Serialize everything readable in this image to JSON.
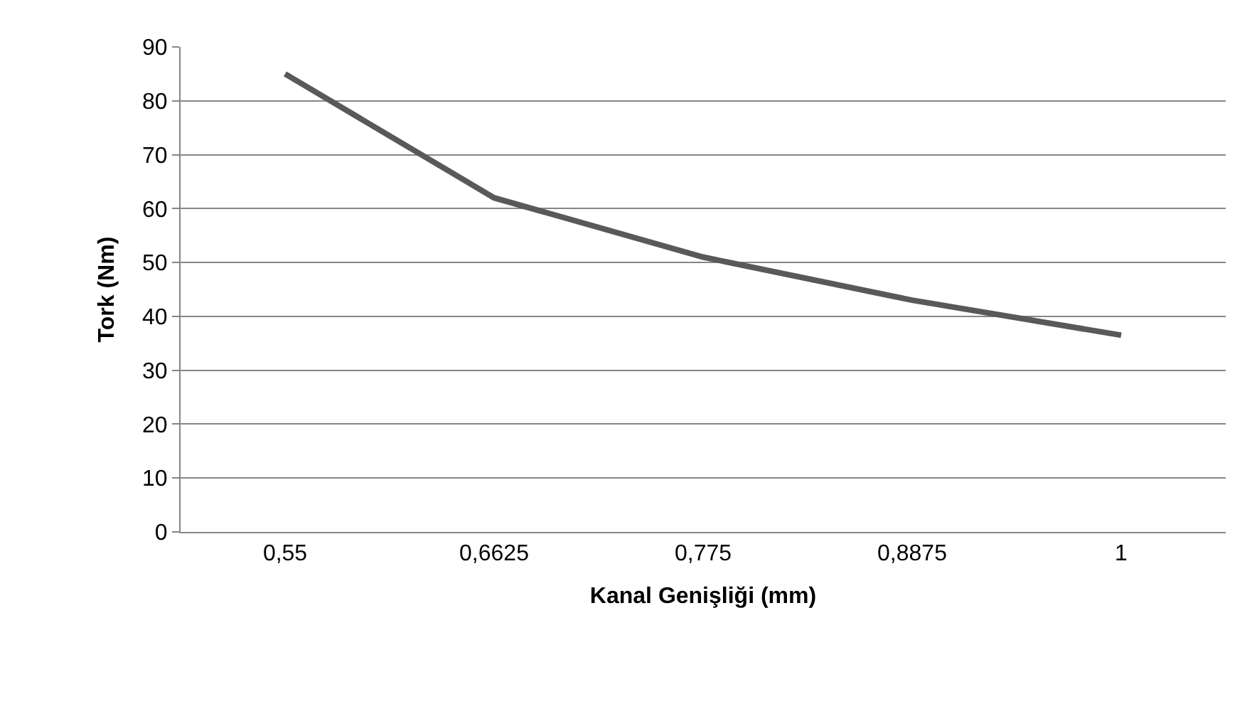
{
  "chart_data": {
    "type": "line",
    "xlabel": "Kanal Genişliği (mm)",
    "ylabel": "Tork (Nm)",
    "categories": [
      "0,55",
      "0,6625",
      "0,775",
      "0,8875",
      "1"
    ],
    "series": [
      {
        "color": "#595959",
        "values": [
          85,
          62,
          51,
          43,
          36.5
        ]
      }
    ],
    "ylim": [
      0,
      90
    ],
    "yticks": [
      0,
      10,
      20,
      30,
      40,
      50,
      60,
      70,
      80,
      90
    ],
    "grid": "y",
    "marker": "none",
    "line_style": "solid"
  }
}
